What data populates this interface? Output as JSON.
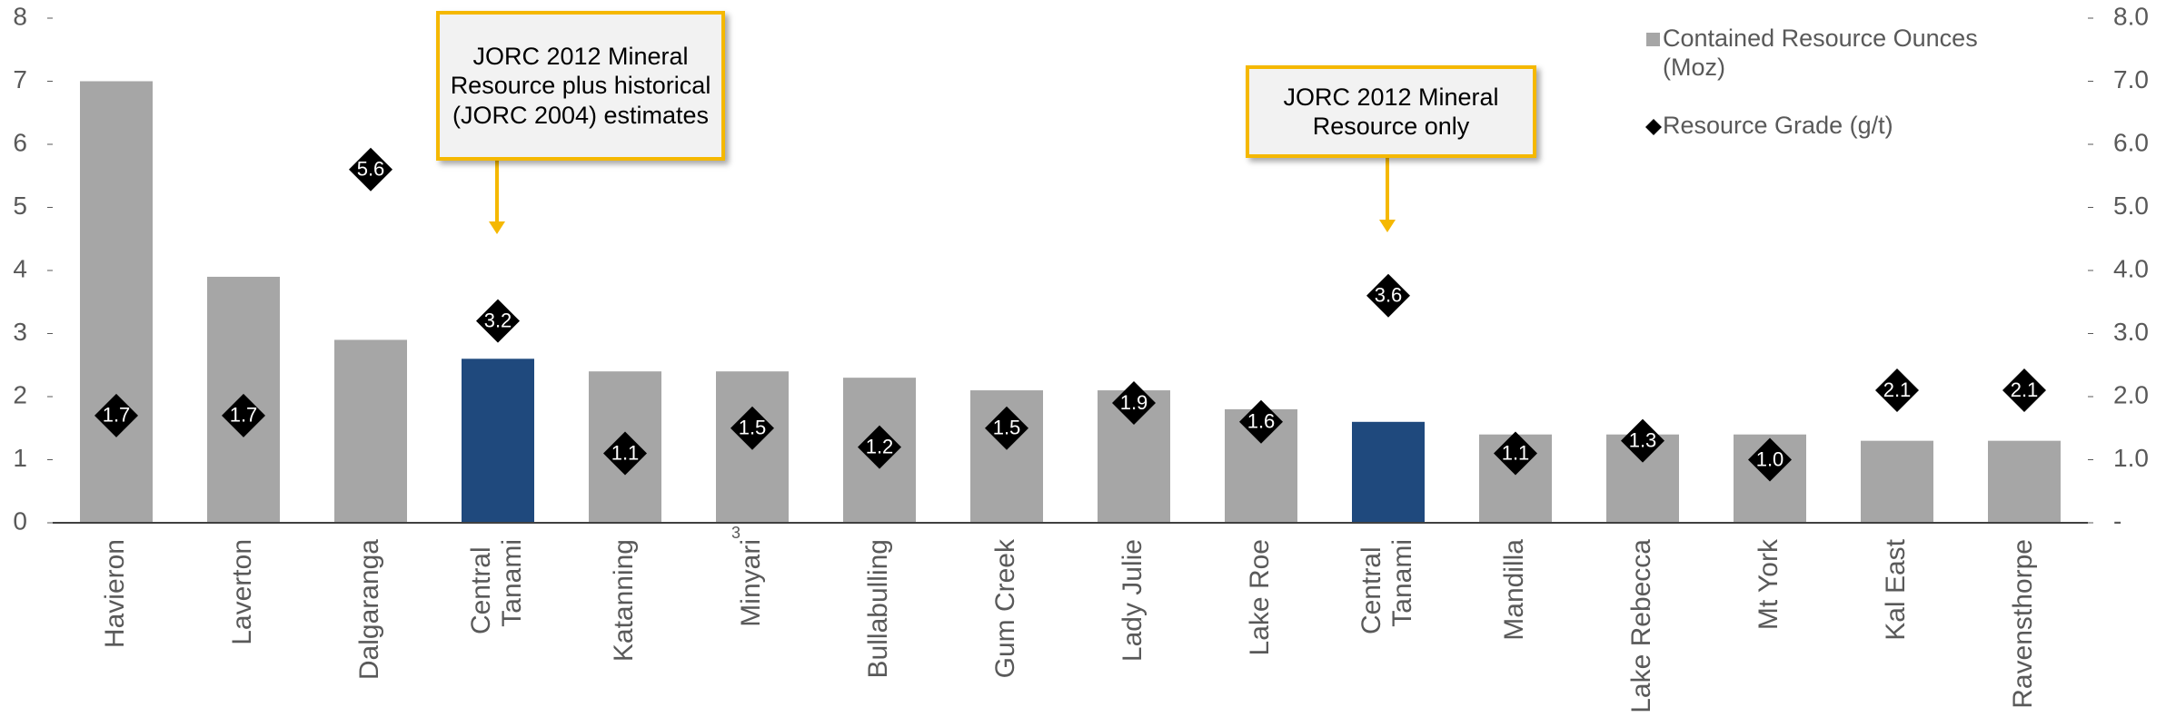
{
  "chart_data": {
    "type": "bar",
    "categories": [
      "Havieron",
      "Laverton",
      "Dalgaranga",
      "Central Tanami",
      "Katanning",
      "Minyari",
      "Bullabulling",
      "Gum Creek",
      "Lady Julie",
      "Lake Roe",
      "Central Tanami",
      "Mandilla",
      "Lake Rebecca",
      "Mt York",
      "Kal East",
      "Ravensthorpe"
    ],
    "superscripts": [
      null,
      null,
      null,
      null,
      null,
      "3",
      null,
      null,
      null,
      null,
      null,
      null,
      null,
      null,
      null,
      null
    ],
    "series": [
      {
        "name": "Contained Resource Ounces (Moz)",
        "type": "bar",
        "color": "#a6a6a6",
        "colors": [
          "#a6a6a6",
          "#a6a6a6",
          "#a6a6a6",
          "#1f497d",
          "#a6a6a6",
          "#a6a6a6",
          "#a6a6a6",
          "#a6a6a6",
          "#a6a6a6",
          "#a6a6a6",
          "#1f497d",
          "#a6a6a6",
          "#a6a6a6",
          "#a6a6a6",
          "#a6a6a6",
          "#a6a6a6"
        ],
        "values": [
          7.0,
          3.9,
          2.9,
          2.6,
          2.4,
          2.4,
          2.3,
          2.1,
          2.1,
          1.8,
          1.6,
          1.4,
          1.4,
          1.4,
          1.3,
          1.3
        ]
      },
      {
        "name": "Resource Grade (g/t)",
        "type": "diamond",
        "axis": "y2",
        "color": "#000000",
        "values": [
          1.7,
          1.7,
          5.6,
          3.2,
          1.1,
          1.5,
          1.2,
          1.5,
          1.9,
          1.6,
          3.6,
          1.1,
          1.3,
          1.0,
          2.1,
          2.1
        ],
        "value_labels": [
          "1.7",
          "1.7",
          "5.6",
          "3.2",
          "1.1",
          "1.5",
          "1.2",
          "1.5",
          "1.9",
          "1.6",
          "3.6",
          "1.1",
          "1.3",
          "1.0",
          "2.1",
          "2.1"
        ]
      }
    ],
    "ylim": [
      0,
      8
    ],
    "yticks": [
      0,
      1,
      2,
      3,
      4,
      5,
      6,
      7,
      8
    ],
    "y2lim": [
      0,
      8
    ],
    "y2ticks": [
      {
        "value": 0,
        "label": "-"
      },
      {
        "value": 1,
        "label": "1.0"
      },
      {
        "value": 2,
        "label": "2.0"
      },
      {
        "value": 3,
        "label": "3.0"
      },
      {
        "value": 4,
        "label": "4.0"
      },
      {
        "value": 5,
        "label": "5.0"
      },
      {
        "value": 6,
        "label": "6.0"
      },
      {
        "value": 7,
        "label": "7.0"
      },
      {
        "value": 8,
        "label": "8.0"
      }
    ],
    "annotations": [
      "JORC 2012 Mineral Resource plus historical (JORC 2004) estimates",
      "JORC 2012 Mineral Resource only"
    ]
  }
}
